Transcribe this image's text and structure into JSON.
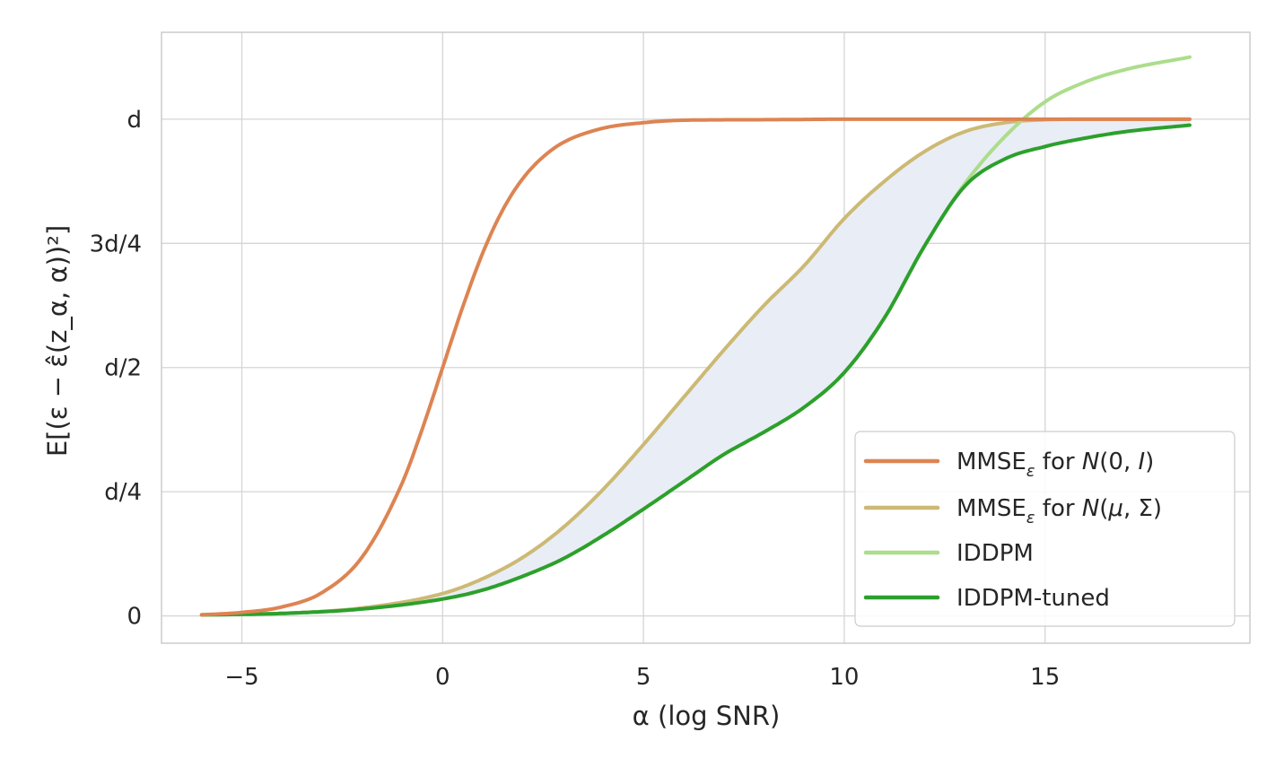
{
  "chart_data": {
    "type": "line",
    "xlabel": "α (log SNR)",
    "ylabel": "E[(ε − ε̂(z_α, α))²]",
    "xlim": [
      -7,
      20.1
    ],
    "ylim": [
      -0.055,
      1.175
    ],
    "grid": true,
    "legend_position": "lower-right",
    "x_ticks": [
      {
        "value": -5,
        "label": "−5"
      },
      {
        "value": 0,
        "label": "0"
      },
      {
        "value": 5,
        "label": "5"
      },
      {
        "value": 10,
        "label": "10"
      },
      {
        "value": 15,
        "label": "15"
      }
    ],
    "y_ticks": [
      {
        "value": 0,
        "label": "0"
      },
      {
        "value": 0.25,
        "label": "d/4"
      },
      {
        "value": 0.5,
        "label": "d/2"
      },
      {
        "value": 0.75,
        "label": "3d/4"
      },
      {
        "value": 1.0,
        "label": "d"
      }
    ],
    "fill_between": {
      "upper": "MMSE_mu_sigma",
      "lower": "IDDPM-tuned",
      "color": "#e9edf5"
    },
    "series": [
      {
        "id": "MMSE_N01",
        "name": "MMSE_ε for N(0, I)",
        "color": "#dd8452",
        "x": [
          -6,
          -5,
          -4,
          -3,
          -2,
          -1,
          -0.5,
          0,
          0.5,
          1,
          1.5,
          2,
          2.5,
          3,
          4,
          5,
          6,
          8,
          10,
          12,
          14,
          16,
          18.6
        ],
        "y": [
          0.002,
          0.007,
          0.018,
          0.047,
          0.119,
          0.269,
          0.378,
          0.5,
          0.622,
          0.731,
          0.818,
          0.881,
          0.924,
          0.953,
          0.982,
          0.993,
          0.998,
          0.999,
          1.0,
          1.0,
          1.0,
          1.0,
          1.0
        ]
      },
      {
        "id": "MMSE_mu_sigma",
        "name": "MMSE_ε for N(μ, Σ)",
        "color": "#ccb974",
        "x": [
          -6,
          -4,
          -2,
          0,
          1,
          2,
          3,
          4,
          5,
          6,
          7,
          8,
          9,
          10,
          11,
          12,
          13,
          14,
          15,
          16,
          18.6
        ],
        "y": [
          0.002,
          0.005,
          0.016,
          0.045,
          0.075,
          0.118,
          0.178,
          0.255,
          0.345,
          0.44,
          0.535,
          0.625,
          0.705,
          0.8,
          0.875,
          0.935,
          0.975,
          0.993,
          0.999,
          1.0,
          1.0
        ]
      },
      {
        "id": "IDDPM",
        "name": "IDDPM",
        "color": "#acdd8b",
        "x": [
          -6,
          -4,
          -2,
          0,
          1,
          2,
          3,
          4,
          5,
          6,
          7,
          8,
          9,
          10,
          11,
          12,
          13,
          14,
          15,
          16,
          17,
          18.6
        ],
        "y": [
          0.002,
          0.005,
          0.014,
          0.034,
          0.052,
          0.08,
          0.115,
          0.162,
          0.215,
          0.27,
          0.325,
          0.37,
          0.42,
          0.49,
          0.6,
          0.745,
          0.87,
          0.965,
          1.035,
          1.075,
          1.1,
          1.125
        ]
      },
      {
        "id": "IDDPM-tuned",
        "name": "IDDPM-tuned",
        "color": "#2ca02c",
        "x": [
          -6,
          -4,
          -2,
          0,
          1,
          2,
          3,
          4,
          5,
          6,
          7,
          8,
          9,
          10,
          11,
          12,
          13,
          14,
          15,
          16,
          17,
          18.6
        ],
        "y": [
          0.002,
          0.005,
          0.014,
          0.034,
          0.052,
          0.08,
          0.115,
          0.162,
          0.215,
          0.27,
          0.325,
          0.37,
          0.42,
          0.49,
          0.6,
          0.745,
          0.865,
          0.92,
          0.945,
          0.962,
          0.975,
          0.988
        ]
      }
    ]
  }
}
